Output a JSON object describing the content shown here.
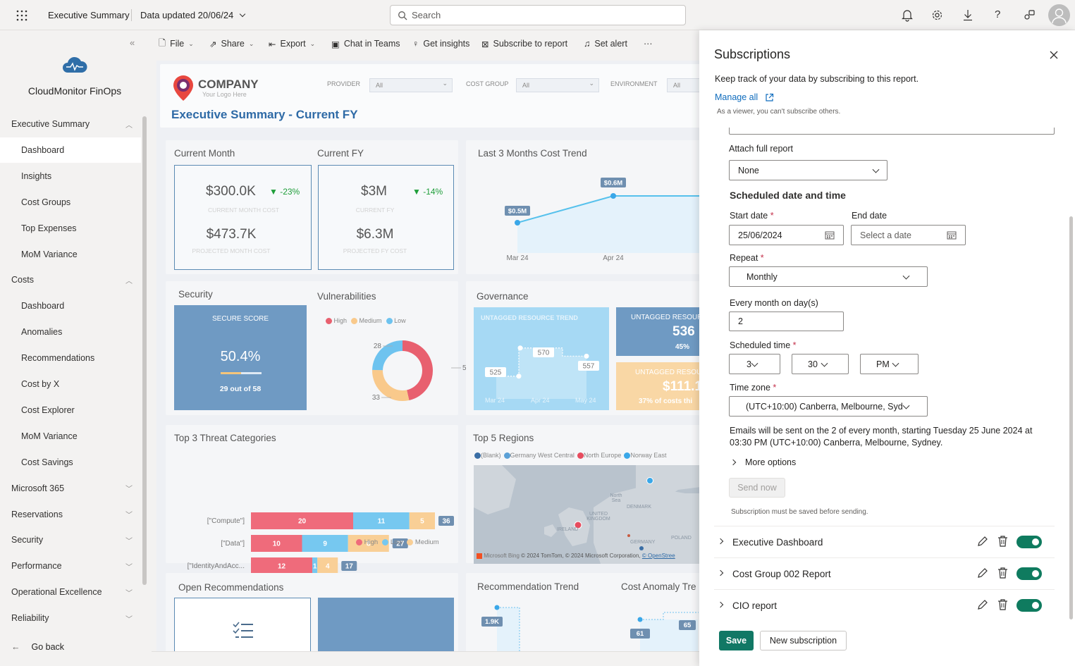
{
  "topbar": {
    "title": "Executive Summary",
    "data_updated": "Data updated 20/06/24",
    "search_placeholder": "Search"
  },
  "sidebar": {
    "app_name": "CloudMonitor FinOps",
    "items": [
      {
        "label": "Executive Summary",
        "level": "section",
        "chevron": "up"
      },
      {
        "label": "Dashboard",
        "level": "sub",
        "active": true
      },
      {
        "label": "Insights",
        "level": "sub"
      },
      {
        "label": "Cost Groups",
        "level": "sub"
      },
      {
        "label": "Top Expenses",
        "level": "sub"
      },
      {
        "label": "MoM Variance",
        "level": "sub"
      },
      {
        "label": "Costs",
        "level": "section",
        "chevron": "up"
      },
      {
        "label": "Dashboard",
        "level": "sub"
      },
      {
        "label": "Anomalies",
        "level": "sub"
      },
      {
        "label": "Recommendations",
        "level": "sub"
      },
      {
        "label": "Cost by X",
        "level": "sub"
      },
      {
        "label": "Cost Explorer",
        "level": "sub"
      },
      {
        "label": "MoM Variance",
        "level": "sub"
      },
      {
        "label": "Cost Savings",
        "level": "sub"
      },
      {
        "label": "Microsoft 365",
        "level": "section",
        "chevron": "down"
      },
      {
        "label": "Reservations",
        "level": "section",
        "chevron": "down"
      },
      {
        "label": "Security",
        "level": "section",
        "chevron": "down"
      },
      {
        "label": "Performance",
        "level": "section",
        "chevron": "down"
      },
      {
        "label": "Operational Excellence",
        "level": "section",
        "chevron": "down"
      },
      {
        "label": "Reliability",
        "level": "section",
        "chevron": "down"
      }
    ],
    "go_back": "Go back"
  },
  "toolbar": {
    "file": "File",
    "share": "Share",
    "export": "Export",
    "chat": "Chat in Teams",
    "insights": "Get insights",
    "subscribe": "Subscribe to report",
    "alert": "Set alert",
    "more": "···"
  },
  "report": {
    "logo_name": "COMPANY",
    "logo_tag": "Your Logo Here",
    "title": "Executive Summary - Current FY",
    "filters": [
      {
        "label": "PROVIDER",
        "value": "All"
      },
      {
        "label": "COST GROUP",
        "value": "All"
      },
      {
        "label": "ENVIRONMENT",
        "value": "All"
      }
    ],
    "current_month": {
      "title": "Current Month",
      "value": "$300.0K",
      "delta": "▼ -23%",
      "label": "CURRENT MONTH COST",
      "projected": "$473.7K",
      "projected_label": "PROJECTED MONTH COST"
    },
    "current_fy": {
      "title": "Current FY",
      "value": "$3M",
      "delta": "▼ -14%",
      "label": "CURRENT FY",
      "projected": "$6.3M",
      "projected_label": "PROJECTED FY COST"
    },
    "trend": {
      "title": "Last 3 Months Cost Trend"
    },
    "security": {
      "title": "Security",
      "heading": "SECURE SCORE",
      "score": "50.4%",
      "detail": "29 out of 58",
      "fraction": 0.504
    },
    "vulnerabilities": {
      "title": "Vulnerabilities"
    },
    "governance": {
      "title": "Governance",
      "trend_title": "UNTAGGED RESOURCE TREND",
      "trend_labels": [
        "525",
        "570",
        "557"
      ],
      "trend_months": [
        "Mar 24",
        "Apr 24",
        "May 24"
      ],
      "untagged_title": "UNTAGGED RESOUR",
      "untagged_value": "536",
      "untagged_pct": "45%",
      "cost_title": "UNTAGGED RESOU",
      "cost_value": "$111.1",
      "cost_note": "37% of costs thi"
    },
    "threats": {
      "title": "Top 3 Threat Categories"
    },
    "regions": {
      "title": "Top 5 Regions",
      "legend": [
        "(Blank)",
        "Germany West Central",
        "North Europe",
        "Norway East"
      ],
      "map_labels": [
        "North Sea",
        "DENMARK",
        "UNITED KINGDOM",
        "IRELAND",
        "GERMANY",
        "POLAND"
      ],
      "credit_brand": "Microsoft Bing",
      "credit": "© 2024 TomTom, © 2024 Microsoft Corporation,",
      "credit_link": "© OpenStree"
    },
    "open_recs": {
      "title": "Open Recommendations"
    },
    "rec_trend": {
      "title": "Recommendation Trend",
      "label": "1.9K"
    },
    "anomaly": {
      "title": "Cost Anomaly Tre",
      "labels": [
        "61",
        "65"
      ]
    }
  },
  "chart_data": [
    {
      "type": "line",
      "title": "Last 3 Months Cost Trend",
      "categories": [
        "Mar 24",
        "Apr 24"
      ],
      "series": [
        {
          "values": [
            0.5,
            0.6
          ]
        }
      ],
      "data_labels": [
        "$0.5M",
        "$0.6M"
      ]
    },
    {
      "type": "pie",
      "title": "Vulnerabilities",
      "categories": [
        "High",
        "Medium",
        "Low"
      ],
      "values": [
        53,
        33,
        28
      ],
      "colors": [
        "#e8606f",
        "#f9c98b",
        "#6ec3ef"
      ]
    },
    {
      "type": "bar",
      "title": "Top 3 Threat Categories",
      "categories": [
        "[\"Compute\"]",
        "[\"Data\"]",
        "[\"IdentityAndAcc..."
      ],
      "series": [
        {
          "name": "High",
          "values": [
            20,
            10,
            12
          ],
          "color": "#ef6b7b"
        },
        {
          "name": "Low",
          "values": [
            11,
            9,
            1
          ],
          "color": "#76c8f0"
        },
        {
          "name": "Medium",
          "values": [
            5,
            8,
            4
          ],
          "color": "#f9cf96"
        }
      ],
      "totals": [
        36,
        27,
        17
      ]
    },
    {
      "type": "line",
      "title": "UNTAGGED RESOURCE TREND",
      "categories": [
        "Mar 24",
        "Apr 24",
        "May 24"
      ],
      "series": [
        {
          "values": [
            525,
            570,
            557
          ]
        }
      ]
    }
  ],
  "legends": {
    "vuln": [
      "High",
      "Medium",
      "Low"
    ],
    "threat": [
      "High",
      "Low",
      "Medium"
    ]
  },
  "subscriptions": {
    "title": "Subscriptions",
    "intro": "Keep track of your data by subscribing to this report.",
    "manage_all": "Manage all",
    "viewer_note": "As a viewer, you can't subscribe others.",
    "attach_label": "Attach full report",
    "attach_value": "None",
    "schedule_heading": "Scheduled date and time",
    "start_label": "Start date",
    "start_value": "25/06/2024",
    "end_label": "End date",
    "end_placeholder": "Select a date",
    "repeat_label": "Repeat",
    "repeat_value": "Monthly",
    "day_label": "Every month on day(s)",
    "day_value": "2",
    "time_label": "Scheduled time",
    "hour": "3",
    "minute": "30",
    "ampm": "PM",
    "tz_label": "Time zone",
    "tz_value": "(UTC+10:00) Canberra, Melbourne, Syd",
    "email_note": "Emails will be sent on the 2 of every month, starting Tuesday 25 June 2024 at 03:30 PM (UTC+10:00) Canberra, Melbourne, Sydney.",
    "more_options": "More options",
    "send_now": "Send now",
    "save_note": "Subscription must be saved before sending.",
    "items": [
      {
        "name": "Executive Dashboard"
      },
      {
        "name": "Cost Group 002 Report"
      },
      {
        "name": "CIO report"
      }
    ],
    "save": "Save",
    "new_sub": "New subscription"
  }
}
